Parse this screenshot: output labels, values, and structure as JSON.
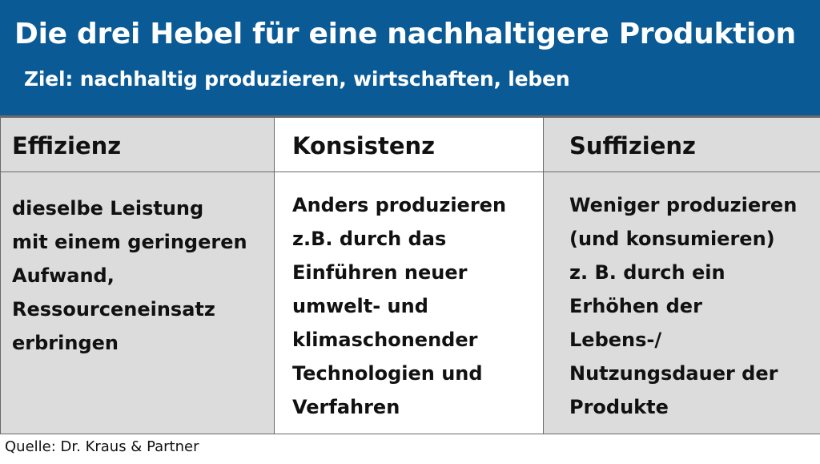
{
  "header": {
    "title": "Die drei Hebel für eine nachhaltigere Produktion",
    "subtitle": "Ziel: nachhaltig produzieren, wirtschaften, leben"
  },
  "columns": [
    {
      "heading": "Effizienz",
      "lines": [
        "dieselbe Leistung",
        "mit einem geringeren",
        "Aufwand,",
        "Ressourceneinsatz",
        "erbringen"
      ]
    },
    {
      "heading": "Konsistenz",
      "lines": [
        "Anders produzieren",
        "z.B. durch das",
        "Einführen neuer",
        "umwelt- und",
        "klimaschonender",
        "Technologien und",
        "Verfahren"
      ]
    },
    {
      "heading": "Suffizienz",
      "lines": [
        "Weniger produzieren",
        "(und konsumieren)",
        "z. B. durch ein",
        "Erhöhen der",
        "Lebens-/",
        "Nutzungsdauer der",
        "Produkte"
      ]
    }
  ],
  "source": "Quelle: Dr. Kraus & Partner",
  "colors": {
    "header_bg": "#0a5a96",
    "grey_cell": "#dcdcdc",
    "border": "#6a6a6a"
  }
}
